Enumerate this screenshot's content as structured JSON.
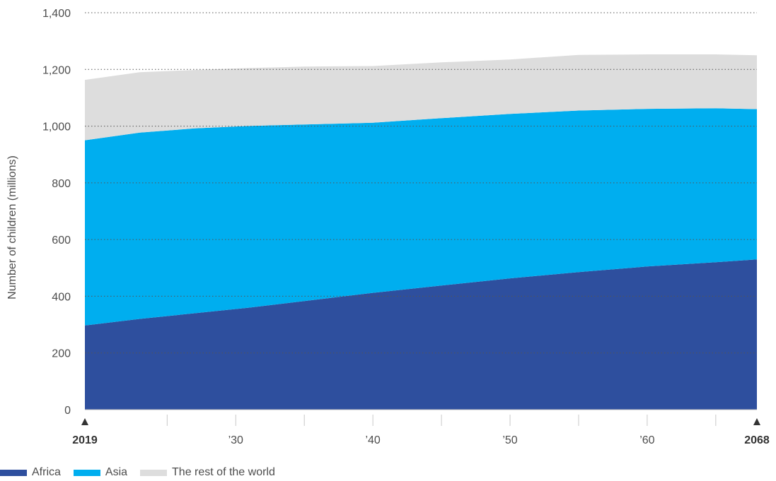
{
  "chart_data": {
    "type": "area",
    "stacked": true,
    "ylabel": "Number of children (millions)",
    "ylim": [
      0,
      1400
    ],
    "y_ticks": [
      "0",
      "200",
      "400",
      "600",
      "800",
      "1,000",
      "1,200",
      "1,400"
    ],
    "x_ticks": [
      "2019",
      "’30",
      "’40",
      "’50",
      "’60",
      "2068"
    ],
    "x_tick_years": [
      2019,
      2030,
      2040,
      2050,
      2060,
      2068
    ],
    "xlim": [
      2019,
      2068
    ],
    "grid": true,
    "legend_position": "bottom-left",
    "x": [
      2019,
      2023,
      2027,
      2031,
      2035,
      2040,
      2045,
      2050,
      2055,
      2060,
      2065,
      2068
    ],
    "series": [
      {
        "name": "Africa",
        "color": "#2e4f9e",
        "values": [
          297,
          320,
          340,
          360,
          383,
          412,
          438,
          463,
          485,
          505,
          520,
          530
        ]
      },
      {
        "name": "Asia",
        "color": "#00aeef",
        "values": [
          653,
          657,
          652,
          641,
          623,
          600,
          590,
          580,
          570,
          556,
          543,
          530
        ]
      },
      {
        "name": "The rest of the world",
        "color": "#dddddd",
        "values": [
          213,
          213,
          206,
          204,
          204,
          200,
          197,
          192,
          196,
          192,
          190,
          190
        ]
      }
    ]
  }
}
